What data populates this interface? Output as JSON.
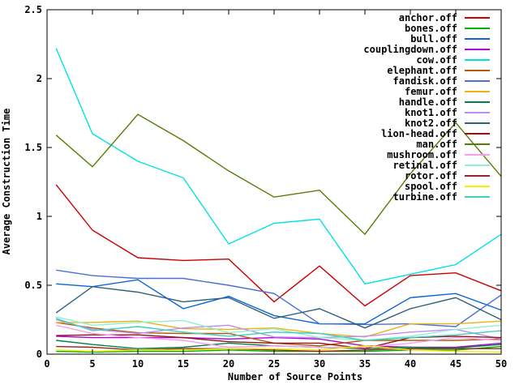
{
  "chart_data": {
    "type": "line",
    "title": "",
    "xlabel": "Number of Source Points",
    "ylabel": "Average Construction Time",
    "xlim": [
      0,
      50
    ],
    "ylim": [
      0,
      2.5
    ],
    "grid": false,
    "legend_position": "top-right",
    "x_ticks": [
      0,
      5,
      10,
      15,
      20,
      25,
      30,
      35,
      40,
      45,
      50
    ],
    "x_tick_labels": [
      "0",
      "5",
      "10",
      "15",
      "20",
      "25",
      "30",
      "35",
      "40",
      "45",
      "50"
    ],
    "y_ticks": [
      0,
      0.5,
      1,
      1.5,
      2,
      2.5
    ],
    "y_tick_labels": [
      "0",
      "0.5",
      "1",
      "1.5",
      "2",
      "2.5"
    ],
    "x": [
      1,
      5,
      10,
      15,
      20,
      25,
      30,
      35,
      40,
      45,
      50
    ],
    "series": [
      {
        "name": "anchor.off",
        "color": "#cc0000",
        "values": [
          1.23,
          0.9,
          0.7,
          0.68,
          0.69,
          0.38,
          0.64,
          0.35,
          0.57,
          0.59,
          0.46
        ]
      },
      {
        "name": "bones.off",
        "color": "#00b400",
        "values": [
          0.02,
          0.015,
          0.02,
          0.02,
          0.03,
          0.02,
          0.02,
          0.02,
          0.03,
          0.03,
          0.055
        ]
      },
      {
        "name": "bull.off",
        "color": "#0a66d6",
        "values": [
          0.51,
          0.49,
          0.54,
          0.33,
          0.42,
          0.28,
          0.22,
          0.22,
          0.41,
          0.44,
          0.32
        ]
      },
      {
        "name": "couplingdown.off",
        "color": "#b400d8",
        "values": [
          0.13,
          0.12,
          0.12,
          0.12,
          0.11,
          0.12,
          0.11,
          0.06,
          0.05,
          0.05,
          0.08
        ]
      },
      {
        "name": "cow.off",
        "color": "#00e2e2",
        "values": [
          2.22,
          1.6,
          1.4,
          1.28,
          0.8,
          0.95,
          0.98,
          0.51,
          0.58,
          0.65,
          0.87
        ]
      },
      {
        "name": "elephant.off",
        "color": "#b45a0c",
        "values": [
          0.23,
          0.19,
          0.155,
          0.15,
          0.15,
          0.08,
          0.06,
          0.1,
          0.1,
          0.1,
          0.11
        ]
      },
      {
        "name": "fandisk.off",
        "color": "#4a6fd8",
        "values": [
          0.61,
          0.57,
          0.55,
          0.55,
          0.5,
          0.44,
          0.22,
          0.215,
          0.22,
          0.2,
          0.43
        ]
      },
      {
        "name": "femur.off",
        "color": "#f0b018",
        "values": [
          0.23,
          0.23,
          0.24,
          0.185,
          0.18,
          0.19,
          0.15,
          0.125,
          0.22,
          0.22,
          0.24
        ]
      },
      {
        "name": "handle.off",
        "color": "#00804c",
        "values": [
          0.1,
          0.07,
          0.04,
          0.05,
          0.08,
          0.06,
          0.05,
          0.04,
          0.05,
          0.045,
          0.07
        ]
      },
      {
        "name": "knot1.off",
        "color": "#bd8ef2",
        "values": [
          0.25,
          0.18,
          0.15,
          0.19,
          0.21,
          0.125,
          0.12,
          0.13,
          0.16,
          0.18,
          0.11
        ]
      },
      {
        "name": "knot2.off",
        "color": "#2d607d",
        "values": [
          0.3,
          0.49,
          0.45,
          0.38,
          0.41,
          0.26,
          0.33,
          0.19,
          0.33,
          0.41,
          0.25
        ]
      },
      {
        "name": "lion-head.off",
        "color": "#8e1414",
        "values": [
          0.135,
          0.14,
          0.14,
          0.12,
          0.09,
          0.08,
          0.08,
          0.04,
          0.12,
          0.13,
          0.12
        ]
      },
      {
        "name": "man.off",
        "color": "#587c04",
        "values": [
          1.59,
          1.36,
          1.74,
          1.55,
          1.33,
          1.14,
          1.19,
          0.87,
          1.31,
          1.68,
          1.29
        ]
      },
      {
        "name": "mushroom.off",
        "color": "#f79ef0",
        "values": [
          0.21,
          0.15,
          0.12,
          0.1,
          0.05,
          0.06,
          0.05,
          0.05,
          0.08,
          0.12,
          0.1
        ]
      },
      {
        "name": "retinal.off",
        "color": "#8ff2cc",
        "values": [
          0.27,
          0.21,
          0.23,
          0.245,
          0.155,
          0.185,
          0.12,
          0.1,
          0.13,
          0.18,
          0.21
        ]
      },
      {
        "name": "rotor.off",
        "color": "#9c2424",
        "values": [
          0.055,
          0.05,
          0.03,
          0.04,
          0.04,
          0.03,
          0.02,
          0.03,
          0.04,
          0.04,
          0.04
        ]
      },
      {
        "name": "spool.off",
        "color": "#f0f000",
        "values": [
          0.031,
          0.02,
          0.03,
          0.03,
          0.04,
          0.04,
          0.03,
          0.06,
          0.03,
          0.02,
          0.015
        ]
      },
      {
        "name": "turbine.off",
        "color": "#3cd2c2",
        "values": [
          0.26,
          0.17,
          0.2,
          0.16,
          0.13,
          0.16,
          0.15,
          0.1,
          0.12,
          0.14,
          0.17
        ]
      }
    ],
    "axis_color": "#000000"
  }
}
